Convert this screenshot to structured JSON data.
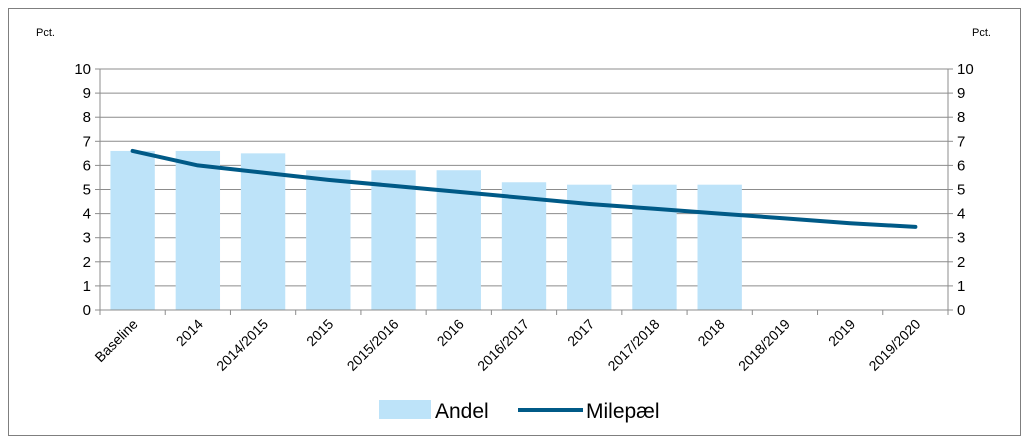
{
  "chart_data": {
    "type": "bar",
    "y_unit_left": "Pct.",
    "y_unit_right": "Pct.",
    "ylim": [
      0,
      10
    ],
    "yticks": [
      0,
      1,
      2,
      3,
      4,
      5,
      6,
      7,
      8,
      9,
      10
    ],
    "grid": true,
    "legend_position": "bottom",
    "categories": [
      "Baseline",
      "2014",
      "2014/2015",
      "2015",
      "2015/2016",
      "2016",
      "2016/2017",
      "2017",
      "2017/2018",
      "2018",
      "2018/2019",
      "2019",
      "2019/2020"
    ],
    "series": [
      {
        "name": "Andel",
        "type": "bar",
        "color": "#bde3f9",
        "values": [
          6.6,
          6.6,
          6.5,
          5.8,
          5.8,
          5.8,
          5.3,
          5.2,
          5.2,
          5.2,
          null,
          null,
          null
        ]
      },
      {
        "name": "Milepæl",
        "type": "line",
        "color": "#005a87",
        "values": [
          6.6,
          6.0,
          5.7,
          5.4,
          5.15,
          4.9,
          4.65,
          4.4,
          4.2,
          4.0,
          3.8,
          3.6,
          3.45
        ]
      }
    ]
  }
}
